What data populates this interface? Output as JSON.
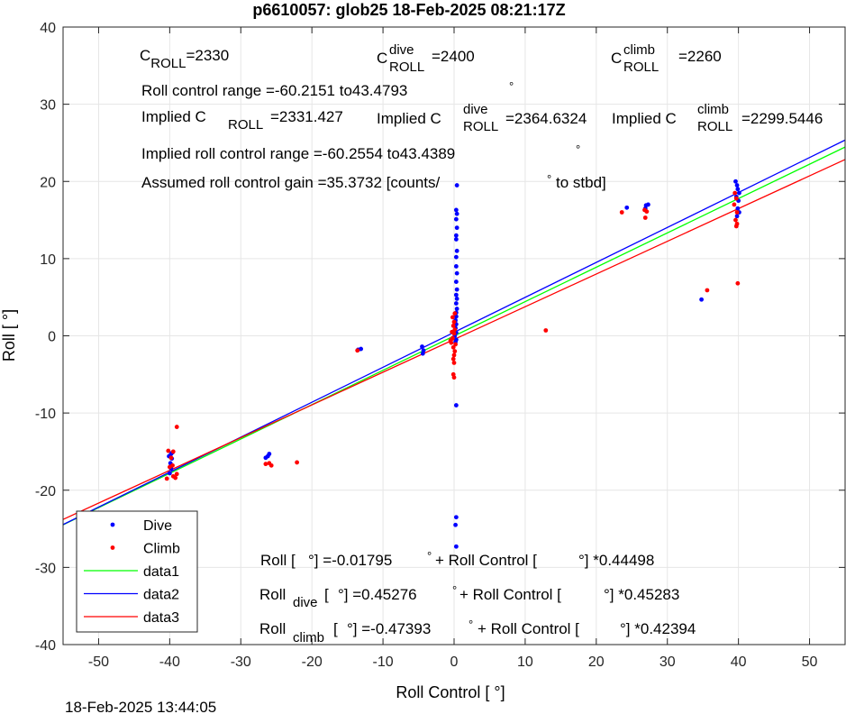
{
  "chart_data": {
    "type": "scatter",
    "title": "p6610057: glob25 18-Feb-2025 08:21:17Z",
    "xlabel": "Roll Control [   °]",
    "ylabel": "Roll [   °]",
    "xlim": [
      -55,
      55
    ],
    "ylim": [
      -40,
      40
    ],
    "xticks": [
      -50,
      -40,
      -30,
      -20,
      -10,
      0,
      10,
      20,
      30,
      40,
      50
    ],
    "yticks": [
      -40,
      -30,
      -20,
      -10,
      0,
      10,
      20,
      30,
      40
    ],
    "grid": true,
    "legend_position": "bottom-left",
    "timestamp": "18-Feb-2025 13:44:05",
    "series": [
      {
        "name": "Dive",
        "kind": "points",
        "color": "#0000ff",
        "points": [
          [
            -40,
            -17.8
          ],
          [
            -39.8,
            -17.2
          ],
          [
            -39.9,
            -16.5
          ],
          [
            -39.7,
            -15.9
          ],
          [
            -39.8,
            -15.3
          ],
          [
            -39.6,
            -15.1
          ],
          [
            -40.1,
            -15.6
          ],
          [
            -26.5,
            -15.8
          ],
          [
            -26.2,
            -15.6
          ],
          [
            -26.0,
            -15.3
          ],
          [
            -13.5,
            -1.8
          ],
          [
            -13.1,
            -1.7
          ],
          [
            -4.5,
            -1.4
          ],
          [
            -4.3,
            -1.9
          ],
          [
            -4.4,
            -2.3
          ],
          [
            0.2,
            -0.8
          ],
          [
            0.3,
            -0.5
          ],
          [
            0.1,
            0.0
          ],
          [
            0.3,
            0.4
          ],
          [
            0.2,
            1.0
          ],
          [
            0.3,
            1.5
          ],
          [
            0.2,
            2.0
          ],
          [
            0.3,
            2.5
          ],
          [
            0.3,
            3.0
          ],
          [
            0.4,
            3.5
          ],
          [
            0.3,
            4.2
          ],
          [
            0.4,
            4.8
          ],
          [
            0.3,
            5.3
          ],
          [
            0.4,
            6.0
          ],
          [
            0.3,
            7.0
          ],
          [
            0.4,
            8.1
          ],
          [
            0.3,
            9.0
          ],
          [
            0.3,
            10.2
          ],
          [
            0.4,
            11.0
          ],
          [
            0.3,
            12.5
          ],
          [
            0.3,
            13.0
          ],
          [
            0.4,
            14.0
          ],
          [
            0.3,
            15.1
          ],
          [
            0.4,
            15.8
          ],
          [
            0.3,
            16.3
          ],
          [
            0.4,
            19.5
          ],
          [
            0.3,
            -9.0
          ],
          [
            0.3,
            -23.5
          ],
          [
            0.2,
            -24.5
          ],
          [
            0.3,
            -27.3
          ],
          [
            24.3,
            16.6
          ],
          [
            27.0,
            16.9
          ],
          [
            27.3,
            17.0
          ],
          [
            26.9,
            16.5
          ],
          [
            34.8,
            4.7
          ],
          [
            39.6,
            20.0
          ],
          [
            39.8,
            19.5
          ],
          [
            39.9,
            19.0
          ],
          [
            40.1,
            18.5
          ],
          [
            39.7,
            18.0
          ],
          [
            40.0,
            17.5
          ],
          [
            39.9,
            16.5
          ],
          [
            40.1,
            16.0
          ],
          [
            39.8,
            15.5
          ]
        ]
      },
      {
        "name": "Climb",
        "kind": "points",
        "color": "#ff0000",
        "points": [
          [
            -40.4,
            -18.5
          ],
          [
            -39.5,
            -18.2
          ],
          [
            -39.2,
            -18.4
          ],
          [
            -39.0,
            -17.9
          ],
          [
            -40.0,
            -17.0
          ],
          [
            -39.6,
            -16.8
          ],
          [
            -39.8,
            -15.8
          ],
          [
            -39.5,
            -15.0
          ],
          [
            -40.2,
            -14.9
          ],
          [
            -39.0,
            -11.8
          ],
          [
            -26.0,
            -16.5
          ],
          [
            -25.7,
            -16.8
          ],
          [
            -26.5,
            -16.6
          ],
          [
            -22.1,
            -16.4
          ],
          [
            -13.6,
            -1.9
          ],
          [
            -0.4,
            -0.9
          ],
          [
            -0.2,
            -0.3
          ],
          [
            0.0,
            0.3
          ],
          [
            0.1,
            0.8
          ],
          [
            -0.1,
            1.3
          ],
          [
            0.0,
            1.8
          ],
          [
            -0.2,
            2.4
          ],
          [
            0.1,
            2.9
          ],
          [
            -0.1,
            -1.5
          ],
          [
            0.1,
            -2.0
          ],
          [
            0.0,
            -2.5
          ],
          [
            -0.1,
            -3.0
          ],
          [
            0.0,
            -3.5
          ],
          [
            -0.1,
            -5.0
          ],
          [
            0.0,
            -5.4
          ],
          [
            -0.3,
            0.5
          ],
          [
            -0.5,
            -0.6
          ],
          [
            0.2,
            -1.1
          ],
          [
            12.9,
            0.7
          ],
          [
            23.6,
            16.0
          ],
          [
            26.8,
            16.3
          ],
          [
            27.1,
            16.1
          ],
          [
            26.9,
            15.3
          ],
          [
            35.6,
            5.9
          ],
          [
            39.5,
            18.5
          ],
          [
            39.7,
            17.8
          ],
          [
            39.4,
            17.0
          ],
          [
            39.8,
            16.0
          ],
          [
            39.6,
            15.0
          ],
          [
            39.8,
            14.5
          ],
          [
            39.7,
            14.2
          ],
          [
            39.9,
            6.8
          ]
        ]
      },
      {
        "name": "data1",
        "kind": "line",
        "color": "#00ff00",
        "slope": 0.44498,
        "intercept": -0.01795
      },
      {
        "name": "data2",
        "kind": "line",
        "color": "#0000ff",
        "slope": 0.45283,
        "intercept": 0.45276
      },
      {
        "name": "data3",
        "kind": "line",
        "color": "#ff0000",
        "slope": 0.42394,
        "intercept": -0.47393
      }
    ],
    "legend": {
      "items": [
        {
          "label": "Dive",
          "type": "marker",
          "color": "#0000ff"
        },
        {
          "label": "Climb",
          "type": "marker",
          "color": "#ff0000"
        },
        {
          "label": "data1",
          "type": "line",
          "color": "#00ff00"
        },
        {
          "label": "data2",
          "type": "line",
          "color": "#0000ff"
        },
        {
          "label": "data3",
          "type": "line",
          "color": "#ff0000"
        }
      ]
    },
    "annotations": {
      "c_roll": {
        "base": "C",
        "sub": "ROLL",
        "value": "=2330"
      },
      "c_roll_dive": {
        "base": "C",
        "sup": "dive",
        "sub": "ROLL",
        "value": "=2400"
      },
      "c_roll_climb": {
        "base": "C",
        "sup": "climb",
        "sub": "ROLL",
        "value": "=2260"
      },
      "range": {
        "text": "Roll control range =-60.2151 to43.4793",
        "degree": "°"
      },
      "implied1": {
        "base": "Implied C",
        "sub": "ROLL",
        "value": "=2331.427"
      },
      "implied2": {
        "base": "Implied C",
        "sup": "dive",
        "sub": "ROLL",
        "value": "=2364.6324"
      },
      "implied3": {
        "base": "Implied C",
        "sup": "climb",
        "sub": "ROLL",
        "value": "=2299.5446"
      },
      "implied_range": {
        "text": "Implied roll control range =-60.2554 to43.4389",
        "degree": "°"
      },
      "gain": {
        "text": "Assumed roll control gain =35.3732 [counts/",
        "degree": "°",
        "tail": " to stbd]"
      },
      "eq1": {
        "a": "Roll [",
        "b": "°] =-0.01795",
        "c": "°",
        "d": " + Roll Control [",
        "e": "°] *0.44498"
      },
      "eq2": {
        "a": "Roll",
        "sub": "dive",
        "b": " [",
        "c": "°] =0.45276",
        "d": "°",
        "e": " + Roll Control [",
        "f": "°] *0.45283"
      },
      "eq3": {
        "a": "Roll",
        "sub": "climb",
        "b": " [",
        "c": "°] =-0.47393",
        "d": "°",
        "e": " + Roll Control [",
        "f": "°] *0.42394"
      }
    }
  }
}
